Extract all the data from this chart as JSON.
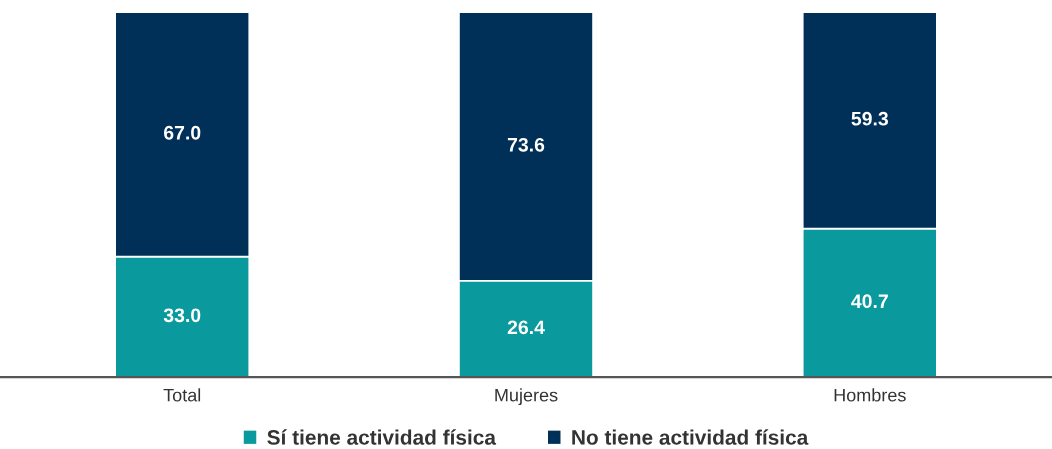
{
  "chart_data": {
    "type": "bar",
    "stacked": true,
    "categories": [
      "Total",
      "Mujeres",
      "Hombres"
    ],
    "series": [
      {
        "name": "Sí tiene actividad física",
        "color": "#0a999c",
        "values": [
          33.0,
          26.4,
          40.7
        ],
        "value_labels": [
          "33.0",
          "26.4",
          "40.7"
        ]
      },
      {
        "name": "No tiene actividad física",
        "color": "#003057",
        "values": [
          67.0,
          73.6,
          59.3
        ],
        "value_labels": [
          "67.0",
          "73.6",
          "59.3"
        ]
      }
    ],
    "ylim": [
      0,
      100
    ],
    "tick_labels": "x",
    "legend": "bottom",
    "grid": false
  }
}
